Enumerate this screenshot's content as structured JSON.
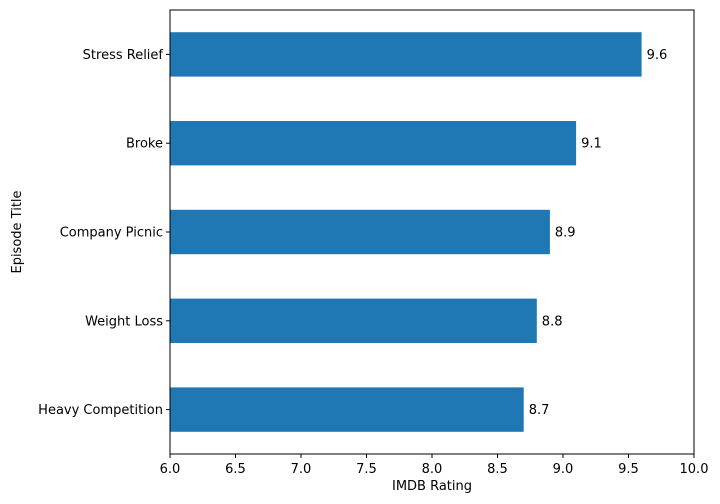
{
  "chart_data": {
    "type": "bar",
    "orientation": "horizontal",
    "categories": [
      "Stress Relief",
      "Broke",
      "Company Picnic",
      "Weight Loss",
      "Heavy Competition"
    ],
    "values": [
      9.6,
      9.1,
      8.9,
      8.8,
      8.7
    ],
    "value_labels": [
      "9.6",
      "9.1",
      "8.9",
      "8.8",
      "8.7"
    ],
    "xlabel": "IMDB Rating",
    "ylabel": "Episode Title",
    "xlim": [
      6.0,
      10.0
    ],
    "xticks": [
      6.0,
      6.5,
      7.0,
      7.5,
      8.0,
      8.5,
      9.0,
      9.5,
      10.0
    ],
    "xtick_labels": [
      "6.0",
      "6.5",
      "7.0",
      "7.5",
      "8.0",
      "8.5",
      "9.0",
      "9.5",
      "10.0"
    ],
    "bar_color": "#1f77b4",
    "grid": false,
    "legend": "none"
  }
}
